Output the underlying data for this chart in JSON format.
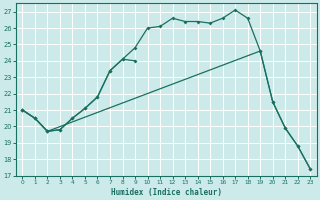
{
  "xlabel": "Humidex (Indice chaleur)",
  "bg_color": "#cceaea",
  "line_color": "#1a7060",
  "grid_color": "#ffffff",
  "xlim": [
    -0.5,
    23.5
  ],
  "ylim": [
    17,
    27.5
  ],
  "xticks": [
    0,
    1,
    2,
    3,
    4,
    5,
    6,
    7,
    8,
    9,
    10,
    11,
    12,
    13,
    14,
    15,
    16,
    17,
    18,
    19,
    20,
    21,
    22,
    23
  ],
  "yticks": [
    17,
    18,
    19,
    20,
    21,
    22,
    23,
    24,
    25,
    26,
    27
  ],
  "line1_x": [
    0,
    1,
    2,
    3,
    4,
    5,
    6,
    7,
    8,
    9,
    10,
    11,
    12,
    13,
    14,
    15,
    16,
    17,
    18,
    19,
    20,
    21,
    22,
    23
  ],
  "line1_y": [
    21,
    20.5,
    19.7,
    19.8,
    20.5,
    21.1,
    21.8,
    23.4,
    24.1,
    24.8,
    26.0,
    26.1,
    26.6,
    26.4,
    26.4,
    26.3,
    26.6,
    27.1,
    26.6,
    24.6,
    21.5,
    19.9,
    18.8,
    17.4
  ],
  "line2_x": [
    0,
    1,
    2,
    3,
    4,
    5,
    6,
    7,
    8,
    9
  ],
  "line2_y": [
    21,
    20.5,
    19.7,
    19.8,
    20.5,
    21.1,
    21.8,
    23.4,
    24.1,
    24.0
  ],
  "line3_x": [
    0,
    1,
    2,
    19,
    20,
    21,
    22,
    23
  ],
  "line3_y": [
    21,
    20.5,
    19.7,
    24.6,
    21.5,
    19.9,
    18.8,
    17.4
  ]
}
